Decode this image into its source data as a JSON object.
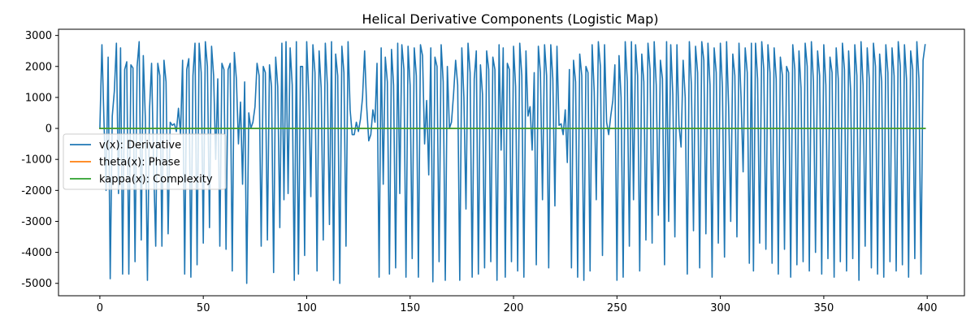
{
  "chart_data": {
    "type": "line",
    "title": "Helical Derivative Components (Logistic Map)",
    "xlabel": "",
    "ylabel": "",
    "xlim": [
      -20,
      418
    ],
    "ylim": [
      -5400,
      3200
    ],
    "x_ticks": [
      0,
      50,
      100,
      150,
      200,
      250,
      300,
      350,
      400
    ],
    "y_ticks": [
      3000,
      2000,
      1000,
      0,
      -1000,
      -2000,
      -3000,
      -4000,
      -5000
    ],
    "grid": false,
    "legend_position": "center-left",
    "x_range": [
      0,
      399
    ],
    "series": [
      {
        "name": "v(x): Derivative",
        "color": "#1f77b4",
        "x_start": 0,
        "x_step": 1,
        "values": [
          0,
          2700,
          200,
          -2000,
          2300,
          -4850,
          400,
          1200,
          2750,
          -2100,
          2600,
          -4700,
          1900,
          2150,
          -4700,
          2050,
          1950,
          -4300,
          2000,
          2800,
          -3600,
          2350,
          300,
          -4900,
          600,
          2100,
          -1200,
          -3800,
          2100,
          1700,
          -3800,
          2200,
          1500,
          -3400,
          200,
          100,
          150,
          -100,
          650,
          -200,
          2200,
          -4700,
          1900,
          2250,
          -4800,
          1700,
          2750,
          -4400,
          2750,
          1800,
          -3700,
          2800,
          2000,
          -3200,
          2650,
          1700,
          -1000,
          1600,
          -3800,
          2100,
          1900,
          -3900,
          1900,
          2100,
          -4600,
          2450,
          1600,
          -500,
          850,
          -1800,
          1500,
          -5000,
          500,
          0,
          200,
          700,
          2100,
          1700,
          -3800,
          2000,
          1800,
          -3600,
          2050,
          1350,
          -4650,
          2300,
          1350,
          -3200,
          2750,
          -2300,
          2800,
          -2100,
          2600,
          1400,
          -4900,
          2800,
          -4700,
          2000,
          2000,
          -4100,
          2800,
          1100,
          -2200,
          2700,
          1800,
          -4600,
          2500,
          1300,
          -3600,
          2750,
          1400,
          -3100,
          2800,
          -4900,
          2400,
          1700,
          -5000,
          2650,
          1800,
          -3800,
          2800,
          600,
          -200,
          -200,
          200,
          -100,
          300,
          1000,
          2500,
          700,
          -400,
          -200,
          600,
          200,
          2100,
          -4800,
          2600,
          -1800,
          2300,
          1500,
          -4700,
          2550,
          1400,
          -4500,
          2750,
          -2100,
          2700,
          1900,
          -4800,
          2650,
          1400,
          -4200,
          2600,
          1700,
          -4800,
          2700,
          2350,
          -500,
          900,
          -1500,
          2600,
          -4950,
          2300,
          2000,
          -4300,
          2700,
          1500,
          -4900,
          2000,
          0,
          200,
          1100,
          2200,
          1400,
          -4900,
          2600,
          1000,
          -2600,
          2750,
          1800,
          -4800,
          1600,
          2500,
          -4700,
          2050,
          1100,
          -4500,
          2500,
          1900,
          -4300,
          2300,
          1900,
          -4900,
          2700,
          -700,
          2600,
          -4800,
          2100,
          1900,
          -4300,
          2650,
          1350,
          -4600,
          2750,
          1700,
          -4800,
          2500,
          400,
          700,
          -700,
          1800,
          -4400,
          2650,
          1800,
          -2300,
          2700,
          1700,
          -4500,
          2700,
          1600,
          -2500,
          2650,
          100,
          150,
          -200,
          600,
          -1100,
          1900,
          -4500,
          2200,
          1500,
          -4800,
          2400,
          1700,
          -4900,
          2000,
          1800,
          -4600,
          2700,
          1200,
          -2300,
          2800,
          2000,
          -4100,
          2700,
          200,
          -200,
          400,
          900,
          2050,
          -4900,
          2350,
          1000,
          -4800,
          2800,
          1500,
          -3800,
          2800,
          -2300,
          2700,
          1700,
          -4600,
          2400,
          1500,
          -3600,
          2750,
          1900,
          -3700,
          2800,
          1400,
          -2800,
          2200,
          1600,
          -4400,
          2800,
          -3000,
          2700,
          1100,
          -3500,
          2700,
          100,
          -600,
          2200,
          1000,
          -4700,
          2800,
          1400,
          -3300,
          2650,
          1800,
          -4500,
          2800,
          2200,
          -3400,
          2750,
          1400,
          -4800,
          2600,
          1800,
          -3700,
          2750,
          1300,
          -4150,
          2800,
          700,
          -3000,
          2400,
          1700,
          -3500,
          2750,
          1000,
          -1400,
          2600,
          1800,
          -4350,
          2750,
          -4600,
          2750,
          1600,
          -3700,
          2800,
          1900,
          -3900,
          2700,
          1800,
          -4350,
          2600,
          1600,
          -4700,
          2300,
          1700,
          -3900,
          2000,
          1800,
          -4800,
          2700,
          1900,
          -4400,
          2500,
          1300,
          -4300,
          2750,
          2000,
          -4600,
          2800,
          1500,
          -4000,
          2500,
          1700,
          -4700,
          2700,
          1400,
          -4200,
          2300,
          1800,
          -4800,
          2600,
          1600,
          -4300,
          2750,
          1900,
          -4600,
          2500,
          1200,
          -4200,
          2700,
          1700,
          -4900,
          2800,
          1400,
          -3800,
          2600,
          1600,
          -4500,
          2750,
          2000,
          -4700,
          2400,
          1500,
          -4800,
          2700,
          1800,
          -4300,
          2600,
          1700,
          -4600,
          2800,
          2000,
          -4400,
          2700,
          1600,
          -4800,
          2500,
          1900,
          -4200,
          2800,
          1600,
          -4700,
          2200,
          2700
        ]
      },
      {
        "name": "theta(x): Phase",
        "color": "#ff7f0e",
        "x_start": 0,
        "x_step": 1,
        "constant": 0
      },
      {
        "name": "kappa(x): Complexity",
        "color": "#2ca02c",
        "x_start": 0,
        "x_step": 1,
        "constant": 0
      }
    ]
  }
}
